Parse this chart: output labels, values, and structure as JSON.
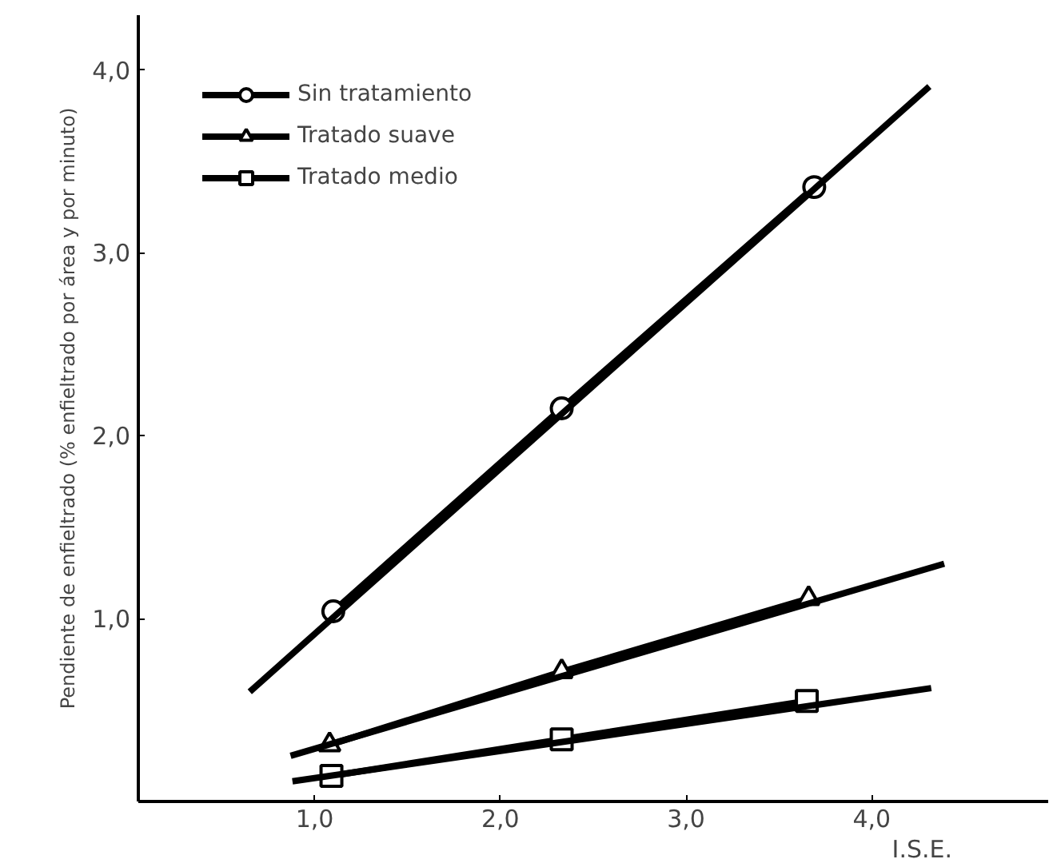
{
  "chart_data": {
    "type": "line",
    "xlabel": "I.S.E.",
    "ylabel": "Pendiente de enfieltrado (% enfieltrado por área y por minuto)",
    "xlim": [
      0.05,
      4.95
    ],
    "ylim": [
      0,
      4.3
    ],
    "xticks": [
      {
        "value": 1.0,
        "label": "1,0"
      },
      {
        "value": 2.0,
        "label": "2,0"
      },
      {
        "value": 3.0,
        "label": "3,0"
      },
      {
        "value": 4.0,
        "label": "4,0"
      }
    ],
    "yticks": [
      {
        "value": 1.0,
        "label": "1,0"
      },
      {
        "value": 2.0,
        "label": "2,0"
      },
      {
        "value": 3.0,
        "label": "3,0"
      },
      {
        "value": 4.0,
        "label": "4,0"
      }
    ],
    "grid": false,
    "legend": "top left",
    "line_style": "solid",
    "series": [
      {
        "name": "Sin tratamiento",
        "color": "#000000",
        "marker": "circle",
        "x": [
          1.1,
          2.33,
          3.69
        ],
        "values": [
          1.04,
          2.15,
          3.36
        ]
      },
      {
        "name": "Tratado suave",
        "color": "#000000",
        "marker": "triangle",
        "x": [
          1.08,
          2.33,
          3.66
        ],
        "values": [
          0.31,
          0.71,
          1.11
        ]
      },
      {
        "name": "Tratado medio",
        "color": "#000000",
        "marker": "square",
        "x": [
          1.09,
          2.33,
          3.65
        ],
        "values": [
          0.14,
          0.34,
          0.55
        ]
      },
      {
        "color": "#000000",
        "marker": "none",
        "x": [
          0.65,
          4.31
        ],
        "values": [
          0.6,
          3.91
        ]
      },
      {
        "color": "#000000",
        "marker": "none",
        "x": [
          0.87,
          4.39
        ],
        "values": [
          0.25,
          1.3
        ]
      },
      {
        "color": "#000000",
        "marker": "none",
        "x": [
          0.88,
          4.32
        ],
        "values": [
          0.11,
          0.62
        ]
      }
    ]
  }
}
